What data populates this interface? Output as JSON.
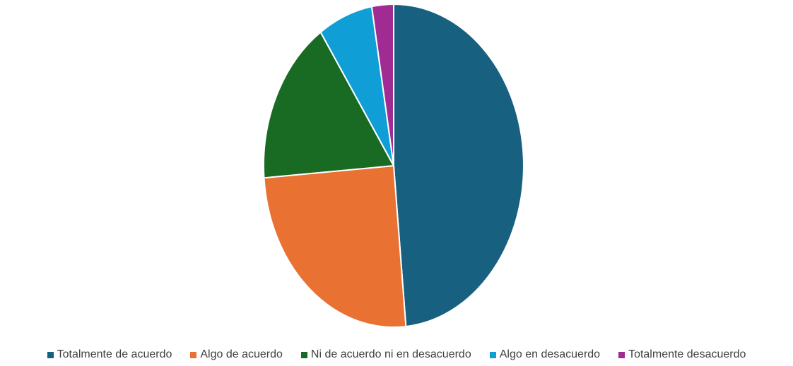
{
  "chart_data": {
    "type": "pie",
    "title": "",
    "start_angle_deg": 0,
    "direction": "clockwise",
    "legend_position": "bottom",
    "slices": [
      {
        "label": "Totalmente de acuerdo",
        "value": 48.5,
        "color": "#17607f"
      },
      {
        "label": "Algo de acuerdo",
        "value": 25.3,
        "color": "#e97132"
      },
      {
        "label": "Ni de acuerdo ni en desacuerdo",
        "value": 16.7,
        "color": "#196b24"
      },
      {
        "label": "Algo en desacuerdo",
        "value": 6.8,
        "color": "#0f9ed5"
      },
      {
        "label": "Totalmente desacuerdo",
        "value": 2.7,
        "color": "#a02b93"
      }
    ]
  }
}
